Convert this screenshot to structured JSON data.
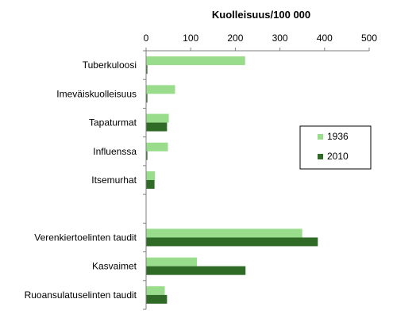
{
  "chart_data": {
    "type": "bar",
    "orientation": "horizontal",
    "title": "Kuolleisuus/100 000",
    "xlabel": "",
    "ylabel": "",
    "xlim": [
      0,
      500
    ],
    "ticks": [
      0,
      100,
      200,
      300,
      400,
      500
    ],
    "axis_position": "top",
    "grid": false,
    "legend_position": "right",
    "categories": [
      "Tuberkuloosi",
      "Imeväiskuolleisuus",
      "Tapaturmat",
      "Influenssa",
      "Itsemurhat",
      "",
      "Verenkiertoelinten taudit",
      "Kasvaimet",
      "Ruoansulatuselinten taudit"
    ],
    "series": [
      {
        "name": "1936",
        "color": "#99dd8c",
        "values": [
          221,
          64,
          50,
          48,
          19,
          null,
          349,
          113,
          41
        ]
      },
      {
        "name": "2010",
        "color": "#2f6b26",
        "values": [
          2,
          2,
          46,
          2,
          18,
          null,
          384,
          222,
          46
        ]
      }
    ]
  }
}
